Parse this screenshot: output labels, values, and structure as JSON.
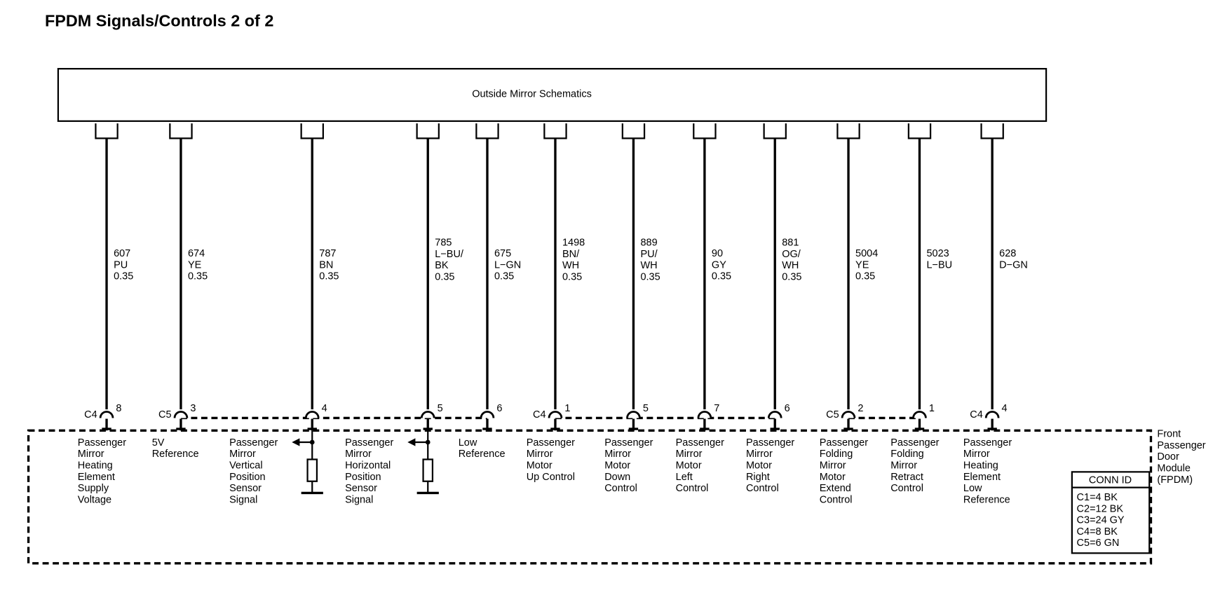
{
  "header": {
    "title": "FPDM Signals/Controls 2 of 2"
  },
  "component": {
    "label": "Outside Mirror Schematics"
  },
  "wires": [
    {
      "circuit": [
        "607",
        "PU",
        "0.35"
      ],
      "connector": "C4",
      "pin": "8",
      "function": [
        "Passenger",
        "Mirror",
        "Heating",
        "Element",
        "Supply",
        "Voltage"
      ]
    },
    {
      "circuit": [
        "674",
        "YE",
        "0.35"
      ],
      "connector": "C5",
      "pin": "3",
      "function": [
        "5V",
        "Reference"
      ]
    },
    {
      "circuit": [
        "787",
        "BN",
        "0.35"
      ],
      "pin": "4",
      "function": [
        "Passenger",
        "Mirror",
        "Vertical",
        "Position",
        "Sensor",
        "Signal"
      ],
      "sensor": true
    },
    {
      "circuit": [
        "785",
        "L−BU/",
        "BK",
        "0.35"
      ],
      "pin": "5",
      "function": [
        "Passenger",
        "Mirror",
        "Horizontal",
        "Position",
        "Sensor",
        "Signal"
      ],
      "sensor": true
    },
    {
      "circuit": [
        "675",
        "L−GN",
        "0.35"
      ],
      "pin": "6",
      "function": [
        "Low",
        "Reference"
      ]
    },
    {
      "circuit": [
        "1498",
        "BN/",
        "WH",
        "0.35"
      ],
      "connector": "C4",
      "pin": "1",
      "function": [
        "Passenger",
        "Mirror",
        "Motor",
        "Up Control"
      ]
    },
    {
      "circuit": [
        "889",
        "PU/",
        "WH",
        "0.35"
      ],
      "pin": "5",
      "function": [
        "Passenger",
        "Mirror",
        "Motor",
        "Down",
        "Control"
      ]
    },
    {
      "circuit": [
        "90",
        "GY",
        "0.35"
      ],
      "pin": "7",
      "function": [
        "Passenger",
        "Mirror",
        "Motor",
        "Left",
        "Control"
      ]
    },
    {
      "circuit": [
        "881",
        "OG/",
        "WH",
        "0.35"
      ],
      "pin": "6",
      "function": [
        "Passenger",
        "Mirror",
        "Motor",
        "Right",
        "Control"
      ]
    },
    {
      "circuit": [
        "5004",
        "YE",
        "0.35"
      ],
      "connector": "C5",
      "pin": "2",
      "function": [
        "Passenger",
        "Folding",
        "Mirror",
        "Motor",
        "Extend",
        "Control"
      ]
    },
    {
      "circuit": [
        "5023",
        "L−BU"
      ],
      "pin": "1",
      "function": [
        "Passenger",
        "Folding",
        "Mirror",
        "Retract",
        "Control"
      ]
    },
    {
      "circuit": [
        "628",
        "D−GN"
      ],
      "connector": "C4",
      "pin": "4",
      "function": [
        "Passenger",
        "Mirror",
        "Heating",
        "Element",
        "Low",
        "Reference"
      ]
    }
  ],
  "module": {
    "label": [
      "Front",
      "Passenger",
      "Door",
      "Module",
      "(FPDM)"
    ]
  },
  "conn_id": {
    "title": "CONN ID",
    "rows": [
      "C1=4 BK",
      "C2=12 BK",
      "C3=24 GY",
      "C4=8 BK",
      "C5=6 GN"
    ]
  }
}
